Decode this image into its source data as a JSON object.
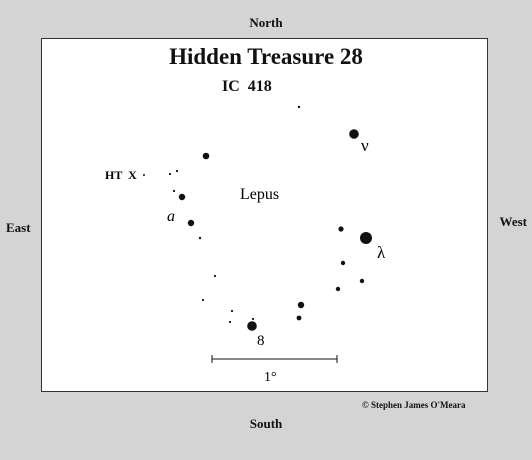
{
  "compass": {
    "north": "North",
    "south": "South",
    "east": "East",
    "west": "West"
  },
  "title": "Hidden Treasure 28",
  "subtitle": "IC  418",
  "constellation": "Lepus",
  "target_label": "HT  X",
  "star_labels": {
    "nu": "ν",
    "lambda": "λ",
    "a": "a",
    "eight": "8"
  },
  "scale_bar": {
    "label": "1°"
  },
  "credit": "© Stephen James O'Meara"
}
